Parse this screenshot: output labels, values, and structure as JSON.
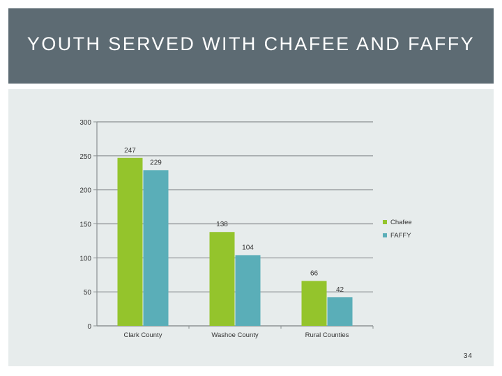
{
  "slide": {
    "title": "YOUTH SERVED WITH CHAFEE AND FAFFY",
    "page_number": "34"
  },
  "colors": {
    "title_band": "#5d6b73",
    "panel": "#e7ecec",
    "chafee": "#94c42c",
    "faffy": "#5aaeb8"
  },
  "chart_data": {
    "type": "bar",
    "title": "",
    "xlabel": "",
    "ylabel": "",
    "categories": [
      "Clark County",
      "Washoe County",
      "Rural Counties"
    ],
    "series": [
      {
        "name": "Chafee",
        "values": [
          247,
          138,
          66
        ],
        "color": "#94c42c"
      },
      {
        "name": "FAFFY",
        "values": [
          229,
          104,
          42
        ],
        "color": "#5aaeb8"
      }
    ],
    "ylim": [
      0,
      300
    ],
    "yticks": [
      0,
      50,
      100,
      150,
      200,
      250,
      300
    ],
    "grid": true,
    "legend_position": "right",
    "data_labels": true
  }
}
